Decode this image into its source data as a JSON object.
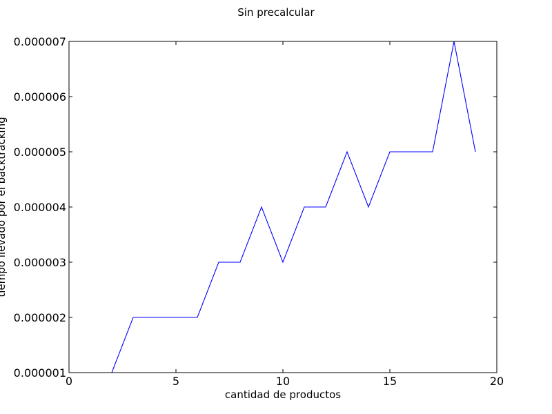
{
  "chart_data": {
    "type": "line",
    "title": "Sin precalcular",
    "xlabel": "cantidad de productos",
    "ylabel": "tiempo llevado por el backtracking",
    "xlim": [
      0,
      20
    ],
    "ylim": [
      1e-06,
      7e-06
    ],
    "grid": false,
    "x_ticks": [
      0,
      5,
      10,
      15,
      20
    ],
    "x_tick_labels": [
      "0",
      "5",
      "10",
      "15",
      "20"
    ],
    "y_ticks": [
      1e-06,
      2e-06,
      3e-06,
      4e-06,
      5e-06,
      6e-06,
      7e-06
    ],
    "y_tick_labels": [
      "0.000001",
      "0.000002",
      "0.000003",
      "0.000004",
      "0.000005",
      "0.000006",
      "0.000007"
    ],
    "series": [
      {
        "color": "#0000ff",
        "x": [
          1,
          2,
          3,
          4,
          5,
          6,
          7,
          8,
          9,
          10,
          11,
          12,
          13,
          14,
          15,
          16,
          17,
          18,
          19
        ],
        "y": [
          1e-06,
          1e-06,
          2e-06,
          2e-06,
          2e-06,
          2e-06,
          3e-06,
          3e-06,
          4e-06,
          3e-06,
          4e-06,
          4e-06,
          5e-06,
          4e-06,
          5e-06,
          5e-06,
          5e-06,
          7e-06,
          5e-06
        ]
      }
    ]
  }
}
